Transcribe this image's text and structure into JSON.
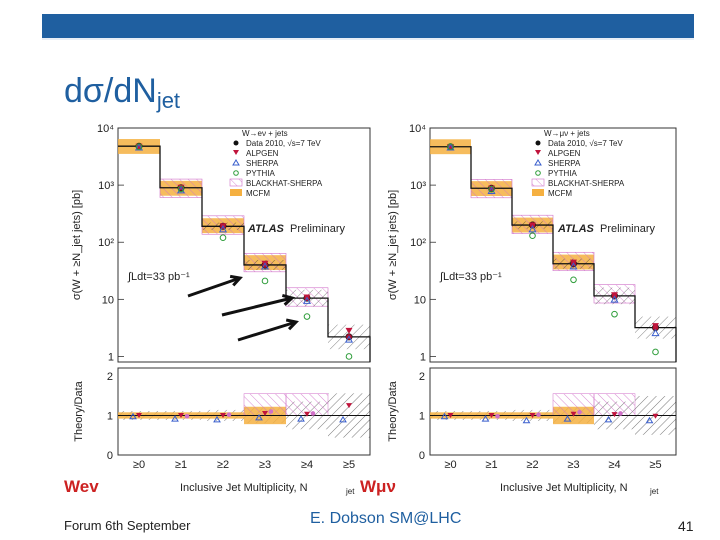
{
  "slide": {
    "title_main": "dσ/dN",
    "title_sub": "jet",
    "footer_left": "Forum 6th September",
    "footer_center": "E. Dobson SM@LHC",
    "page_number": "41"
  },
  "colors": {
    "header_blue": "#1f5fa0",
    "data_marker": "#b01030",
    "mcfm_fill": "#f5b041",
    "alpgen": "#c0143c",
    "sherpa": "#3a5fcd",
    "pythia": "#2e9d3a",
    "blackhat": "#d070c8",
    "channel_label": "#cc2222"
  },
  "chart_data": [
    {
      "type": "histogram-ratio",
      "channel_label": "Wev",
      "process_label": "W→eν + jets",
      "atlas_label": "ATLAS",
      "preliminary_label": "Preliminary",
      "lumi_label": "∫Ldt=33 pb⁻¹",
      "ylabel": "σ(W + ≥N_jet jets) [pb]",
      "ratio_ylabel": "Theory/Data",
      "xlabel": "Inclusive Jet Multiplicity, N",
      "xlabel_sub": "jet",
      "categories": [
        "≥0",
        "≥1",
        "≥2",
        "≥3",
        "≥4",
        "≥5"
      ],
      "ylim_log": [
        0.8,
        10000
      ],
      "yticks": [
        "10⁴",
        "10³",
        "10²",
        "10",
        "1"
      ],
      "ratio_yticks": [
        "2",
        "1",
        "0"
      ],
      "ratio_ylim": [
        0,
        2.2
      ],
      "legend": [
        "Data 2010, √s=7 TeV",
        "ALPGEN",
        "SHERPA",
        "PYTHIA",
        "BLACKHAT-SHERPA",
        "MCFM"
      ],
      "series": [
        {
          "name": "Data 2010, √s=7 TeV",
          "values": [
            4800,
            900,
            190,
            40,
            10.5,
            2.2
          ]
        },
        {
          "name": "ALPGEN",
          "values": [
            4700,
            900,
            190,
            42,
            10.8,
            2.8
          ]
        },
        {
          "name": "SHERPA",
          "values": [
            4600,
            820,
            170,
            38,
            9.5,
            2.0
          ]
        },
        {
          "name": "PYTHIA",
          "values": [
            4700,
            860,
            120,
            21,
            5.0,
            1.0
          ]
        },
        {
          "name": "BLACKHAT-SHERPA",
          "values": [
            null,
            880,
            200,
            44,
            11.0,
            null
          ]
        },
        {
          "name": "MCFM",
          "values": [
            4750,
            880,
            195,
            44,
            null,
            null
          ]
        }
      ],
      "ratio_series": [
        {
          "name": "ALPGEN",
          "values": [
            1.0,
            1.0,
            1.0,
            1.05,
            1.03,
            1.25
          ]
        },
        {
          "name": "SHERPA",
          "values": [
            0.98,
            0.92,
            0.9,
            0.95,
            0.92,
            0.9
          ]
        },
        {
          "name": "BLACKHAT-SHERPA",
          "values": [
            null,
            0.98,
            1.02,
            1.1,
            1.05,
            null
          ]
        }
      ],
      "data_error_frac": [
        0.08,
        0.08,
        0.1,
        0.14,
        0.25,
        0.4
      ]
    },
    {
      "type": "histogram-ratio",
      "channel_label": "Wμν",
      "process_label": "W→μν + jets",
      "atlas_label": "ATLAS",
      "preliminary_label": "Preliminary",
      "lumi_label": "∫Ldt=33 pb⁻¹",
      "ylabel": "σ(W + ≥N_jet jets) [pb]",
      "ratio_ylabel": "Theory/Data",
      "xlabel": "Inclusive Jet Multiplicity, N",
      "xlabel_sub": "jet",
      "categories": [
        "≥0",
        "≥1",
        "≥2",
        "≥3",
        "≥4",
        "≥5"
      ],
      "ylim_log": [
        0.8,
        10000
      ],
      "yticks": [
        "10⁴",
        "10³",
        "10²",
        "10",
        "1"
      ],
      "ratio_yticks": [
        "2",
        "1",
        "0"
      ],
      "ratio_ylim": [
        0,
        2.2
      ],
      "legend": [
        "Data 2010, √s=7 TeV",
        "ALPGEN",
        "SHERPA",
        "PYTHIA",
        "BLACKHAT-SHERPA",
        "MCFM"
      ],
      "series": [
        {
          "name": "Data 2010, √s=7 TeV",
          "values": [
            4700,
            880,
            200,
            42,
            11.5,
            3.2
          ]
        },
        {
          "name": "ALPGEN",
          "values": [
            4650,
            870,
            195,
            44,
            11.8,
            3.4
          ]
        },
        {
          "name": "SHERPA",
          "values": [
            4600,
            800,
            170,
            38,
            10.0,
            2.6
          ]
        },
        {
          "name": "PYTHIA",
          "values": [
            4700,
            850,
            130,
            22,
            5.5,
            1.2
          ]
        },
        {
          "name": "BLACKHAT-SHERPA",
          "values": [
            null,
            870,
            205,
            46,
            12.5,
            null
          ]
        },
        {
          "name": "MCFM",
          "values": [
            4700,
            870,
            200,
            45,
            null,
            null
          ]
        }
      ],
      "ratio_series": [
        {
          "name": "ALPGEN",
          "values": [
            1.0,
            1.0,
            1.0,
            1.03,
            1.02,
            0.98
          ]
        },
        {
          "name": "SHERPA",
          "values": [
            0.98,
            0.92,
            0.88,
            0.92,
            0.9,
            0.88
          ]
        },
        {
          "name": "BLACKHAT-SHERPA",
          "values": [
            null,
            0.98,
            1.02,
            1.08,
            1.05,
            null
          ]
        }
      ],
      "data_error_frac": [
        0.08,
        0.08,
        0.1,
        0.14,
        0.25,
        0.35
      ]
    }
  ]
}
